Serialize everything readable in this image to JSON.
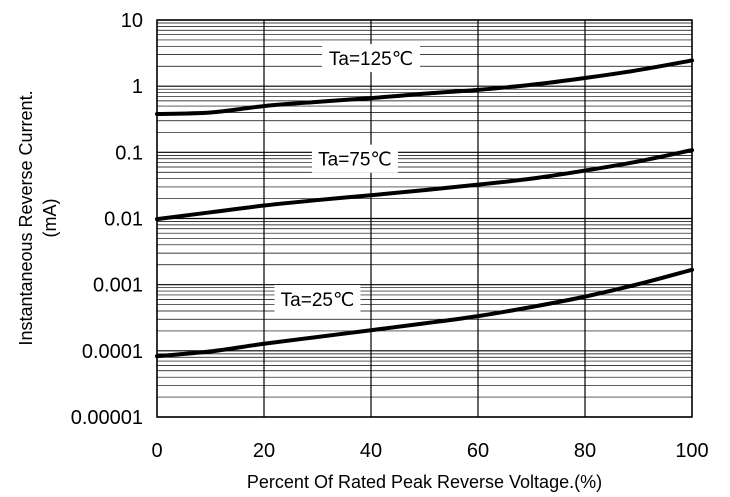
{
  "chart_data": {
    "type": "line",
    "title": "",
    "xlabel": "Percent Of Rated Peak Reverse Voltage.(%)",
    "ylabel_line1": "Instantaneous Reverse Current.",
    "ylabel_line2": "(mA)",
    "x_scale": "linear",
    "y_scale": "log",
    "xlim": [
      0,
      100
    ],
    "ylim": [
      1e-05,
      10
    ],
    "x_ticks": [
      0,
      20,
      40,
      60,
      80,
      100
    ],
    "x_tick_labels": [
      "0",
      "20",
      "40",
      "60",
      "80",
      "100"
    ],
    "y_ticks": [
      1e-05,
      0.0001,
      0.001,
      0.01,
      0.1,
      1,
      10
    ],
    "y_tick_labels": [
      "0.00001",
      "0.0001",
      "0.001",
      "0.01",
      "0.1",
      "1",
      "10"
    ],
    "grid": true,
    "series": [
      {
        "name": "Ta=125℃",
        "x": [
          0,
          10,
          20,
          30,
          40,
          50,
          60,
          70,
          80,
          90,
          100
        ],
        "y": [
          0.38,
          0.4,
          0.5,
          0.58,
          0.66,
          0.77,
          0.88,
          1.05,
          1.33,
          1.75,
          2.45
        ]
      },
      {
        "name": "Ta=75℃",
        "x": [
          0,
          10,
          20,
          30,
          40,
          50,
          60,
          70,
          80,
          90,
          100
        ],
        "y": [
          0.0098,
          0.0124,
          0.0157,
          0.019,
          0.0225,
          0.0268,
          0.0325,
          0.04,
          0.053,
          0.073,
          0.108
        ]
      },
      {
        "name": "Ta=25℃",
        "x": [
          0,
          10,
          20,
          30,
          40,
          50,
          60,
          70,
          80,
          90,
          100
        ],
        "y": [
          8.3e-05,
          9.8e-05,
          0.000128,
          0.000162,
          0.000205,
          0.00026,
          0.000335,
          0.00046,
          0.00066,
          0.00102,
          0.00168
        ]
      }
    ]
  }
}
